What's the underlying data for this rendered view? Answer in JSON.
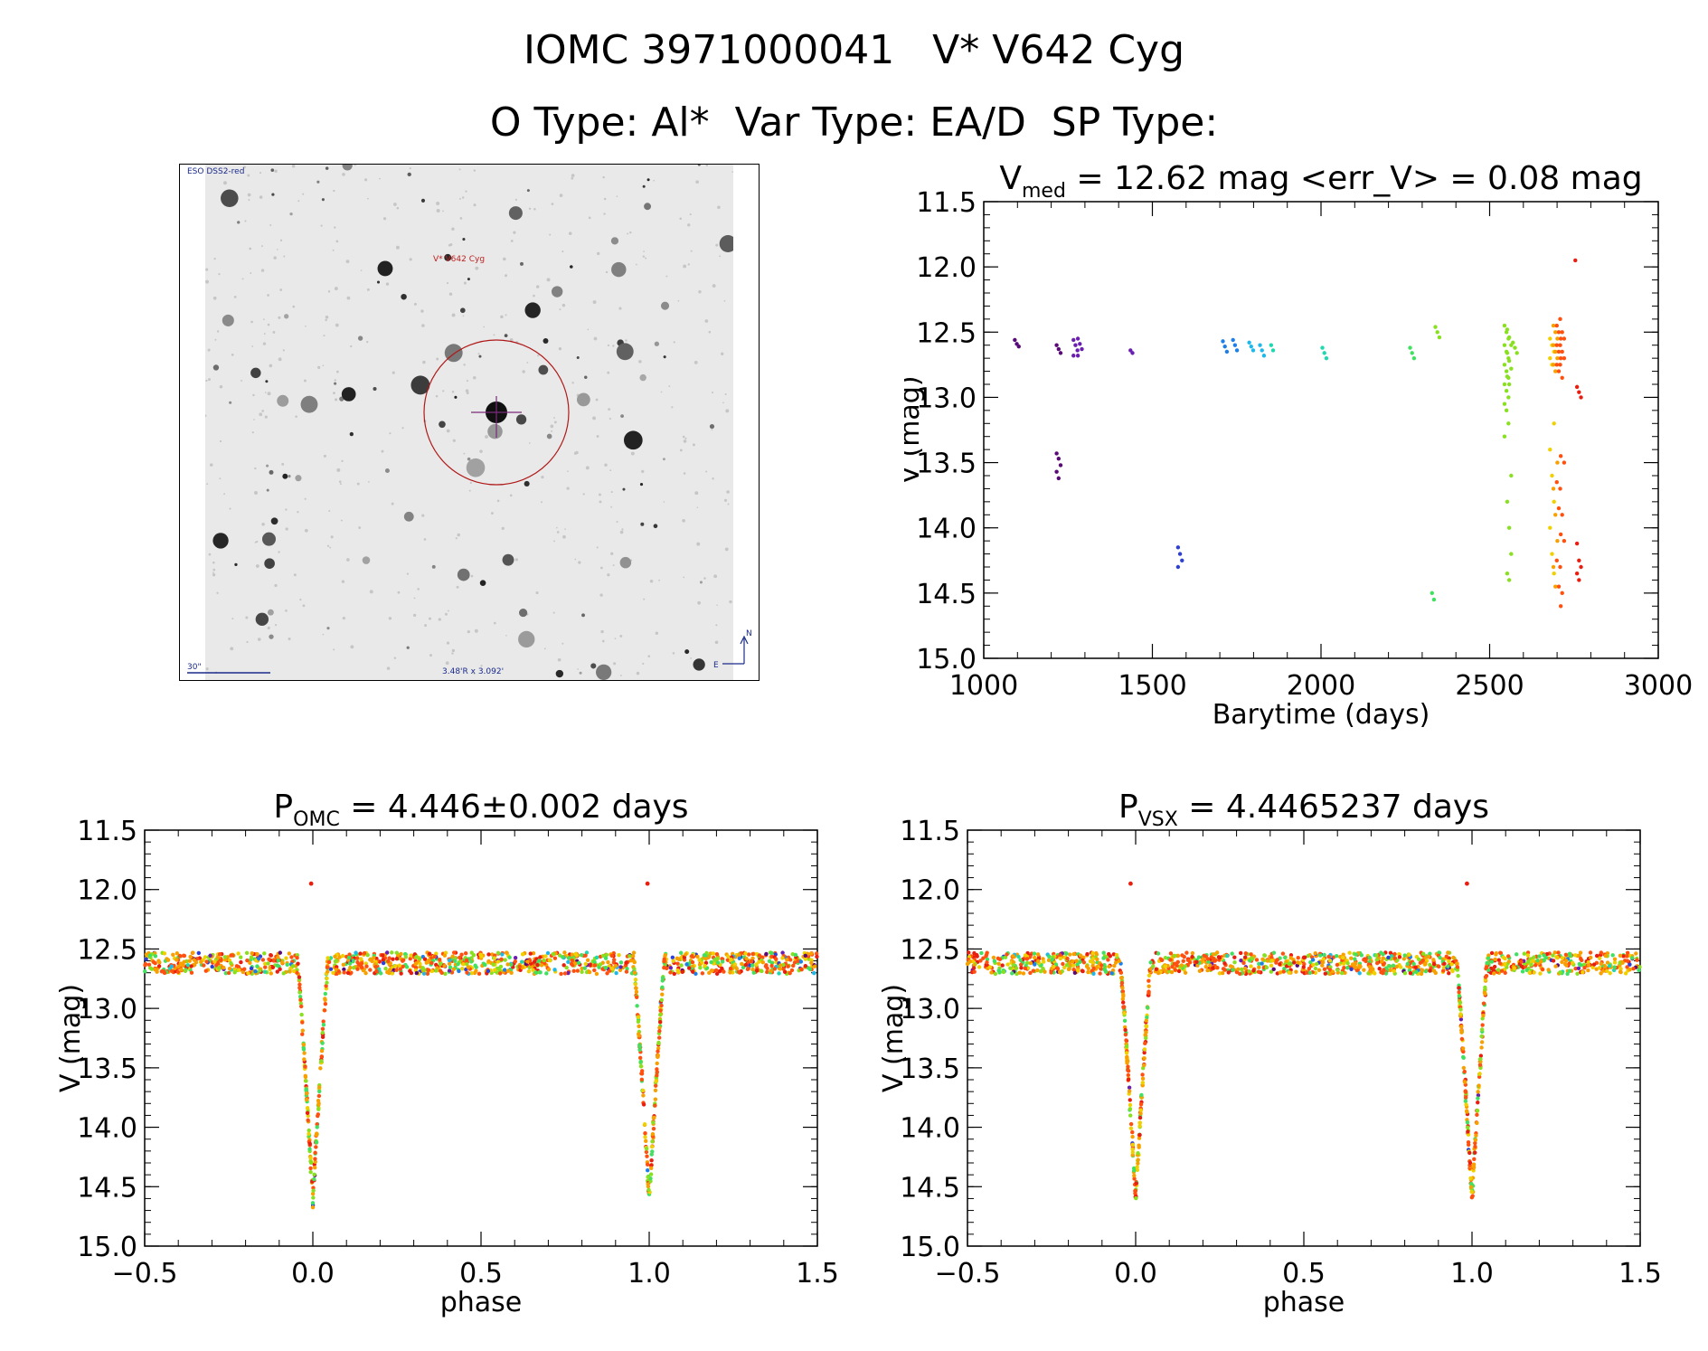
{
  "header": {
    "line1": "IOMC 3971000041   V* V642 Cyg",
    "line2": "O Type: Al*  Var Type: EA/D  SP Type:"
  },
  "finder": {
    "survey_label": "ESO DSS2-red",
    "target_label": "V* V642 Cyg",
    "scale_label": "30\"",
    "fov_label": "3.48'R x 3.092'",
    "north_label": "N",
    "east_label": "E"
  },
  "colors": {
    "palette": [
      "#5a0a78",
      "#6a1fb0",
      "#2e3fd6",
      "#1f7fe6",
      "#20b8e8",
      "#20d8b0",
      "#40e060",
      "#88e020",
      "#f0d000",
      "#f8a000",
      "#ff5010",
      "#e81e10"
    ]
  },
  "chart_data": [
    {
      "id": "lightcurve",
      "type": "scatter",
      "title": "V",
      "title_sub": "med",
      "title_rest": " = 12.62 mag <err_V> = 0.08 mag",
      "xlabel": "Barytime (days)",
      "ylabel": "V (mag)",
      "xlim": [
        1000,
        3000
      ],
      "ylim": [
        15.0,
        11.5
      ],
      "xticks": [
        1000,
        1500,
        2000,
        2500,
        3000
      ],
      "xtick_labels": [
        "1000",
        "1500",
        "2000",
        "2500",
        "3000"
      ],
      "yticks": [
        11.5,
        12.0,
        12.5,
        13.0,
        13.5,
        14.0,
        14.5,
        15.0
      ],
      "ytick_labels": [
        "11.5",
        "12.0",
        "12.5",
        "13.0",
        "13.5",
        "14.0",
        "14.5",
        "15.0"
      ],
      "groups": [
        {
          "x": 1098,
          "y": [
            12.56,
            12.59,
            12.61
          ],
          "color": 0
        },
        {
          "x": 1222,
          "y": [
            12.6,
            12.63,
            12.66
          ],
          "color": 0
        },
        {
          "x": 1222,
          "y": [
            13.43,
            13.47,
            13.52,
            13.57,
            13.62
          ],
          "color": 0
        },
        {
          "x": 1272,
          "y": [
            12.56,
            12.6,
            12.64,
            12.68
          ],
          "color": 1
        },
        {
          "x": 1285,
          "y": [
            12.55,
            12.59,
            12.63,
            12.68
          ],
          "color": 1
        },
        {
          "x": 1441,
          "y": [
            12.64,
            12.66
          ],
          "color": 1
        },
        {
          "x": 1582,
          "y": [
            14.15,
            14.2,
            14.25,
            14.3
          ],
          "color": 2
        },
        {
          "x": 1715,
          "y": [
            12.57,
            12.61,
            12.65
          ],
          "color": 3
        },
        {
          "x": 1745,
          "y": [
            12.56,
            12.6,
            12.64
          ],
          "color": 3
        },
        {
          "x": 1793,
          "y": [
            12.58,
            12.61,
            12.64
          ],
          "color": 4
        },
        {
          "x": 1825,
          "y": [
            12.6,
            12.64,
            12.68
          ],
          "color": 4
        },
        {
          "x": 1858,
          "y": [
            12.6,
            12.64
          ],
          "color": 5
        },
        {
          "x": 2010,
          "y": [
            12.62,
            12.66,
            12.7
          ],
          "color": 5
        },
        {
          "x": 2270,
          "y": [
            12.62,
            12.66,
            12.7
          ],
          "color": 6
        },
        {
          "x": 2335,
          "y": [
            14.5,
            14.55
          ],
          "color": 6
        },
        {
          "x": 2345,
          "y": [
            12.46,
            12.5,
            12.54
          ],
          "color": 7
        },
        {
          "x": 2550,
          "y": [
            12.45,
            12.5,
            12.55,
            12.6,
            12.65,
            12.7,
            12.75,
            12.8,
            12.85,
            12.9,
            12.95,
            13.0,
            13.05,
            13.1,
            13.2,
            13.3
          ],
          "color": 7
        },
        {
          "x": 2558,
          "y": [
            12.48,
            12.54,
            12.6,
            12.66,
            12.72,
            12.78,
            12.84,
            12.9,
            13.6,
            13.8,
            14.0,
            14.2,
            14.35,
            14.4
          ],
          "color": 7
        },
        {
          "x": 2575,
          "y": [
            12.58,
            12.62,
            12.66
          ],
          "color": 7
        },
        {
          "x": 2685,
          "y": [
            12.55,
            12.6,
            12.65,
            12.7,
            12.75,
            13.2,
            13.4,
            13.6,
            13.8,
            14.0,
            14.2,
            14.35
          ],
          "color": 8
        },
        {
          "x": 2695,
          "y": [
            12.45,
            12.5,
            12.55,
            12.6,
            12.65,
            12.7,
            12.75,
            12.8,
            13.5,
            13.7,
            13.9,
            14.1,
            14.3,
            14.45
          ],
          "color": 9
        },
        {
          "x": 2705,
          "y": [
            12.45,
            12.5,
            12.55,
            12.6,
            12.65,
            12.7,
            12.75,
            12.8,
            13.45,
            13.65,
            13.85,
            14.05,
            14.25,
            14.45,
            14.6
          ],
          "color": 10
        },
        {
          "x": 2715,
          "y": [
            12.4,
            12.5,
            12.55,
            12.6,
            12.65,
            12.7,
            12.75,
            12.85,
            13.5,
            13.7,
            13.9,
            14.1,
            14.3,
            14.5
          ],
          "color": 10
        },
        {
          "x": 2760,
          "y": [
            11.95
          ],
          "color": 11
        },
        {
          "x": 2765,
          "y": [
            12.92,
            12.96,
            13.0
          ],
          "color": 11
        },
        {
          "x": 2765,
          "y": [
            14.12,
            14.25,
            14.3,
            14.35,
            14.4
          ],
          "color": 11
        }
      ]
    },
    {
      "id": "phase-omc",
      "type": "scatter",
      "title": "P",
      "title_sub": "OMC",
      "title_rest": " = 4.446±0.002 days",
      "xlabel": "phase",
      "ylabel": "V (mag)",
      "xlim": [
        -0.5,
        1.5
      ],
      "ylim": [
        15.0,
        11.5
      ],
      "xticks": [
        -0.5,
        0.0,
        0.5,
        1.0,
        1.5
      ],
      "xtick_labels": [
        "−0.5",
        "0.0",
        "0.5",
        "1.0",
        "1.5"
      ],
      "yticks": [
        11.5,
        12.0,
        12.5,
        13.0,
        13.5,
        14.0,
        14.5,
        15.0
      ],
      "ytick_labels": [
        "11.5",
        "12.0",
        "12.5",
        "13.0",
        "13.5",
        "14.0",
        "14.5",
        "15.0"
      ],
      "eclipse_phase": 0.0,
      "eclipse_depth_mag": 14.6,
      "baseline_mag": 12.62,
      "outlier": {
        "phase": -0.005,
        "mag": 11.95
      }
    },
    {
      "id": "phase-vsx",
      "type": "scatter",
      "title": "P",
      "title_sub": "VSX",
      "title_rest": " = 4.4465237 days",
      "xlabel": "phase",
      "ylabel": "V (mag)",
      "xlim": [
        -0.5,
        1.5
      ],
      "ylim": [
        15.0,
        11.5
      ],
      "xticks": [
        -0.5,
        0.0,
        0.5,
        1.0,
        1.5
      ],
      "xtick_labels": [
        "−0.5",
        "0.0",
        "0.5",
        "1.0",
        "1.5"
      ],
      "yticks": [
        11.5,
        12.0,
        12.5,
        13.0,
        13.5,
        14.0,
        14.5,
        15.0
      ],
      "ytick_labels": [
        "11.5",
        "12.0",
        "12.5",
        "13.0",
        "13.5",
        "14.0",
        "14.5",
        "15.0"
      ],
      "eclipse_phase": 0.0,
      "eclipse_depth_mag": 14.6,
      "baseline_mag": 12.62,
      "outlier": {
        "phase": -0.015,
        "mag": 11.95
      }
    }
  ]
}
